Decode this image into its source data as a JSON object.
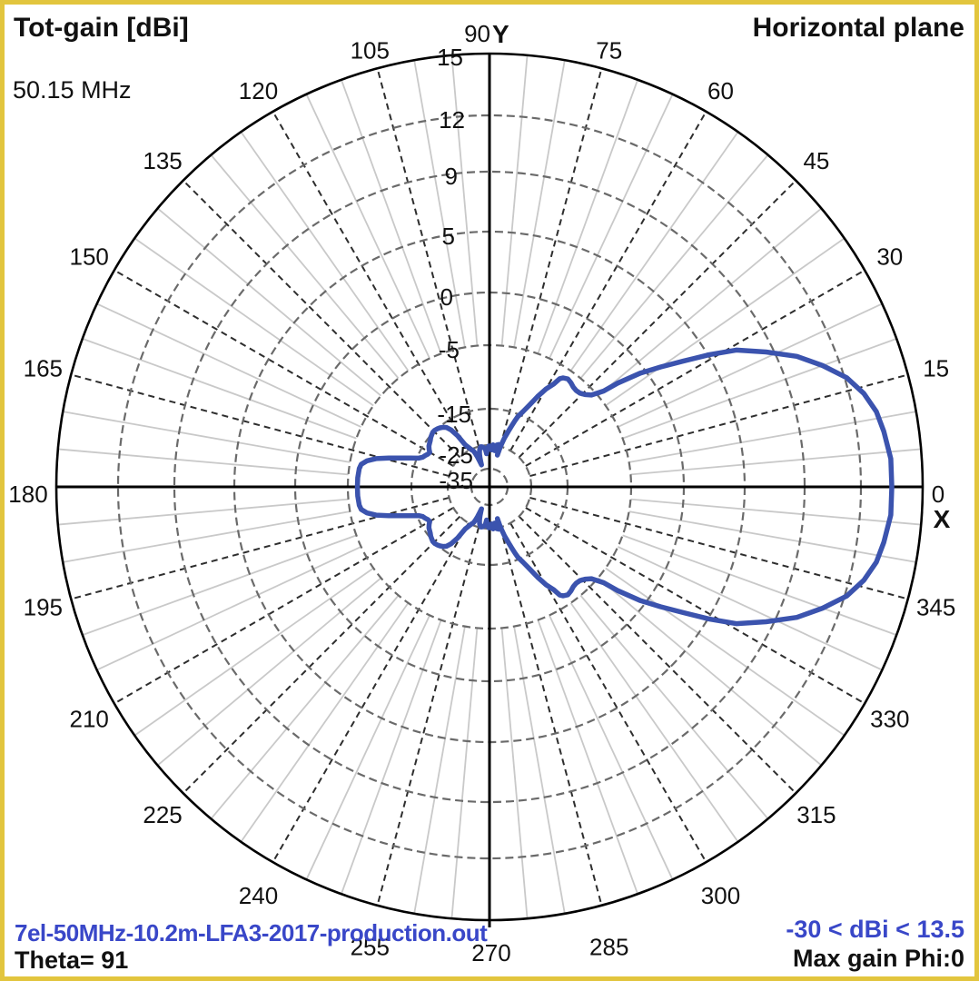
{
  "header": {
    "title_left": "Tot-gain [dBi]",
    "frequency": "50.15 MHz",
    "title_right": "Horizontal plane"
  },
  "footer": {
    "filename": "7el-50MHz-10.2m-LFA3-2017-production.out",
    "theta_label": "Theta= 91",
    "scale_range": "-30 < dBi < 13.5",
    "max_gain_label": "Max gain Phi:0"
  },
  "colors": {
    "frame_yellow": "#e2c53e",
    "pattern_blue": "#3b53ae",
    "text_blue": "#3947c8",
    "ring_gray": "#6a6a6a",
    "minor_spoke_gray": "#c9c9c9",
    "major_spoke_dark": "#2e2e2e",
    "axis_black": "#000000"
  },
  "chart_data": {
    "type": "polar",
    "title": "Tot-gain [dBi] — Horizontal plane",
    "frequency_mhz": 50.15,
    "theta_deg": 91,
    "max_gain_dbi": 13.5,
    "scale_min_dbi": -30,
    "scale_note": "nonlinear dB radial scale, rings labeled in dBi",
    "ring_dbi": [
      15,
      12,
      9,
      5,
      0,
      -5,
      -15,
      -25,
      -35
    ],
    "ring_labels": [
      "15",
      "12",
      "9",
      "5",
      "0",
      "-5",
      "-15",
      "-25",
      "-35"
    ],
    "angle_ticks_deg": [
      0,
      15,
      30,
      45,
      60,
      75,
      90,
      105,
      120,
      135,
      150,
      165,
      180,
      195,
      210,
      225,
      240,
      255,
      270,
      285,
      300,
      315,
      330,
      345
    ],
    "axis_letter_x": "X",
    "axis_letter_y": "Y",
    "symmetry": "pattern for 180-360 deg mirrors 0-180 deg",
    "pattern_phi_dbi_half": [
      [
        0,
        13.5
      ],
      [
        4,
        13.5
      ],
      [
        8,
        13.3
      ],
      [
        11,
        13.1
      ],
      [
        14,
        12.7
      ],
      [
        17,
        12.1
      ],
      [
        20,
        11.1
      ],
      [
        23,
        10.0
      ],
      [
        26,
        8.5
      ],
      [
        29,
        6.8
      ],
      [
        31,
        5.1
      ],
      [
        33,
        3.0
      ],
      [
        35,
        1.2
      ],
      [
        37,
        -0.5
      ],
      [
        39,
        -2.8
      ],
      [
        40,
        -4.3
      ],
      [
        42,
        -5.7
      ],
      [
        44,
        -6.4
      ],
      [
        46,
        -6.8
      ],
      [
        48,
        -6.9
      ],
      [
        50,
        -6.8
      ],
      [
        52,
        -6.5
      ],
      [
        54,
        -6.3
      ],
      [
        56,
        -6.6
      ],
      [
        57,
        -7.0
      ],
      [
        58,
        -8.2
      ],
      [
        60,
        -9.5
      ],
      [
        62,
        -11.2
      ],
      [
        64,
        -13.0
      ],
      [
        66,
        -14.3
      ],
      [
        68,
        -15.6
      ],
      [
        69,
        -17.0
      ],
      [
        70,
        -18.6
      ],
      [
        71,
        -20.0
      ],
      [
        72,
        -21.3
      ],
      [
        73,
        -22.4
      ],
      [
        74,
        -24.0
      ],
      [
        75,
        -25.5
      ],
      [
        76,
        -28.8
      ],
      [
        77,
        -25.6
      ],
      [
        78,
        -24.6
      ],
      [
        79,
        -25.9
      ],
      [
        80,
        -24.8
      ],
      [
        81,
        -25.9
      ],
      [
        82,
        -27.2
      ],
      [
        83,
        -25.4
      ],
      [
        84,
        -26.6
      ],
      [
        85,
        -24.9
      ],
      [
        86,
        -26.2
      ],
      [
        87,
        -27.0
      ],
      [
        88,
        -25.7
      ],
      [
        89,
        -25.4
      ],
      [
        90,
        -26.2
      ],
      [
        91,
        -25.4
      ],
      [
        92,
        -26.8
      ],
      [
        93,
        -26.0
      ],
      [
        94,
        -27.5
      ],
      [
        95,
        -28.6
      ],
      [
        96,
        -27.0
      ],
      [
        97,
        -26.3
      ],
      [
        98,
        -26.0
      ],
      [
        99,
        -25.7
      ],
      [
        100,
        -25.5
      ],
      [
        101,
        -25.4
      ],
      [
        102,
        -25.3
      ],
      [
        103,
        -25.6
      ],
      [
        104,
        -26.0
      ],
      [
        105,
        -26.5
      ],
      [
        106,
        -27.4
      ],
      [
        107,
        -28.4
      ],
      [
        108,
        -29.8
      ],
      [
        109,
        -31.4
      ],
      [
        110,
        -32.8
      ],
      [
        111,
        -30.9
      ],
      [
        112,
        -29.0
      ],
      [
        113,
        -27.3
      ],
      [
        114,
        -26.0
      ],
      [
        115,
        -25.6
      ],
      [
        116,
        -25.2
      ],
      [
        117,
        -24.7
      ],
      [
        118,
        -24.2
      ],
      [
        119,
        -23.7
      ],
      [
        120,
        -23.2
      ],
      [
        122,
        -19.8
      ],
      [
        124,
        -17.6
      ],
      [
        126,
        -16.3
      ],
      [
        128,
        -15.7
      ],
      [
        130,
        -15.3
      ],
      [
        132,
        -15.0
      ],
      [
        134,
        -14.9
      ],
      [
        136,
        -14.9
      ],
      [
        138,
        -15.1
      ],
      [
        140,
        -15.4
      ],
      [
        142,
        -15.8
      ],
      [
        144,
        -16.1
      ],
      [
        146,
        -16.4
      ],
      [
        148,
        -16.9
      ],
      [
        150,
        -17.5
      ],
      [
        152,
        -17.3
      ],
      [
        154,
        -16.8
      ],
      [
        156,
        -16.4
      ],
      [
        158,
        -15.4
      ],
      [
        160,
        -14.0
      ],
      [
        162,
        -12.6
      ],
      [
        164,
        -10.8
      ],
      [
        166,
        -8.9
      ],
      [
        168,
        -7.6
      ],
      [
        170,
        -6.8
      ],
      [
        172,
        -6.6
      ],
      [
        176,
        -6.5
      ],
      [
        180,
        -6.5
      ]
    ]
  }
}
